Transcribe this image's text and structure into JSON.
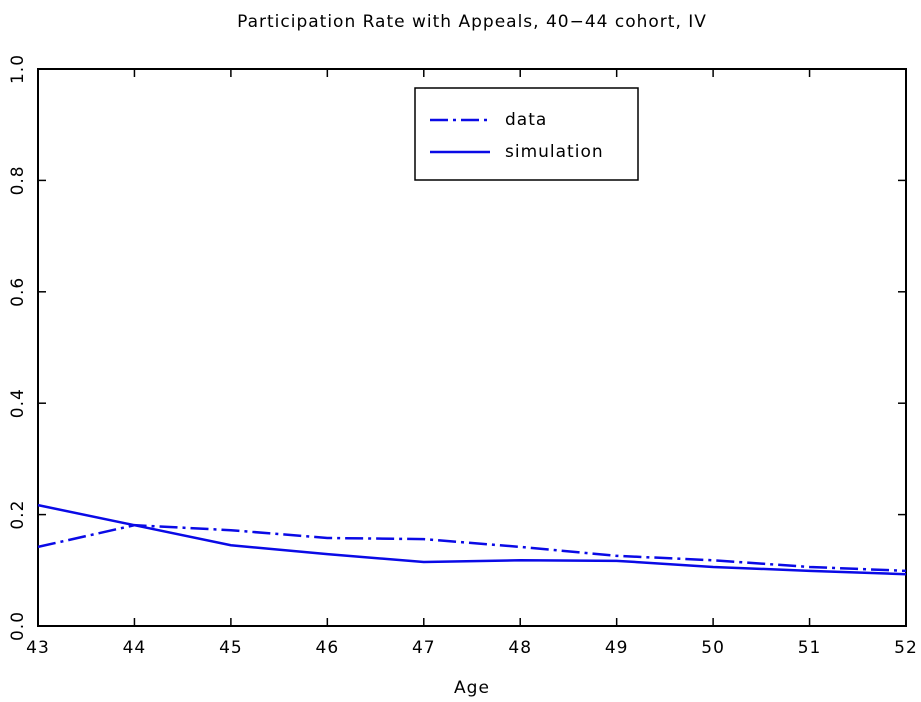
{
  "chart_data": {
    "type": "line",
    "title": "Participation Rate with Appeals, 40−44 cohort, IV",
    "x_label": "Age",
    "x": [
      43,
      44,
      45,
      46,
      47,
      48,
      49,
      50,
      51,
      52
    ],
    "series": [
      {
        "name": "data",
        "color": "#0a0ae6",
        "linestyle": "dashdot",
        "values": [
          0.142,
          0.181,
          0.172,
          0.158,
          0.156,
          0.142,
          0.126,
          0.118,
          0.106,
          0.099
        ]
      },
      {
        "name": "simulation",
        "color": "#0a0ae6",
        "linestyle": "solid",
        "values": [
          0.217,
          0.181,
          0.145,
          0.129,
          0.115,
          0.118,
          0.117,
          0.106,
          0.099,
          0.093
        ]
      }
    ],
    "xlim": [
      43,
      52
    ],
    "xticks": [
      43,
      44,
      45,
      46,
      47,
      48,
      49,
      50,
      51,
      52
    ],
    "ylim": [
      0,
      1
    ],
    "yticks": [
      {
        "value": 0,
        "label": "0.0"
      },
      0.2,
      0.4,
      0.6,
      0.8,
      {
        "value": 1,
        "label": "1.0"
      }
    ],
    "grid": false,
    "legend": "top"
  }
}
